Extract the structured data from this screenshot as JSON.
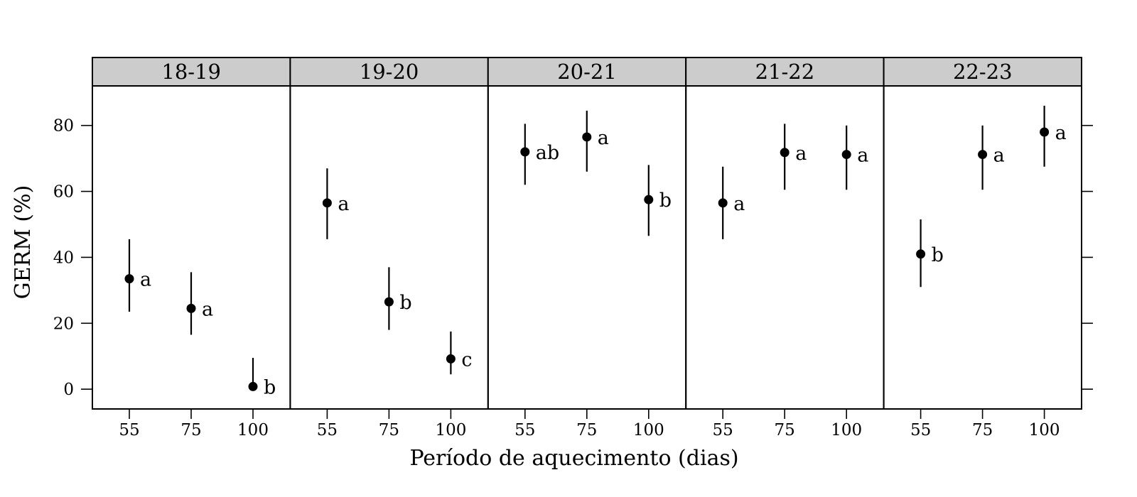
{
  "chart_data": {
    "type": "scatter",
    "subtype": "point-with-error-bars, faceted",
    "xlabel": "Período de aquecimento (dias)",
    "ylabel": "GERM (%)",
    "x_categories": [
      "55",
      "75",
      "100"
    ],
    "y_ticks": [
      0,
      20,
      40,
      60,
      80
    ],
    "ylim": [
      -6,
      92
    ],
    "grid": false,
    "panels": [
      {
        "strip": "18-19",
        "points": [
          {
            "x": "55",
            "y": 33.5,
            "lower": 23.5,
            "upper": 45.5,
            "group": "a"
          },
          {
            "x": "75",
            "y": 24.5,
            "lower": 16.5,
            "upper": 35.5,
            "group": "a"
          },
          {
            "x": "100",
            "y": 0.8,
            "lower": 0.0,
            "upper": 9.5,
            "group": "b"
          }
        ]
      },
      {
        "strip": "19-20",
        "points": [
          {
            "x": "55",
            "y": 56.5,
            "lower": 45.5,
            "upper": 67.0,
            "group": "a"
          },
          {
            "x": "75",
            "y": 26.5,
            "lower": 18.0,
            "upper": 37.0,
            "group": "b"
          },
          {
            "x": "100",
            "y": 9.2,
            "lower": 4.5,
            "upper": 17.5,
            "group": "c"
          }
        ]
      },
      {
        "strip": "20-21",
        "points": [
          {
            "x": "55",
            "y": 72.0,
            "lower": 62.0,
            "upper": 80.5,
            "group": "ab"
          },
          {
            "x": "75",
            "y": 76.5,
            "lower": 66.0,
            "upper": 84.5,
            "group": "a"
          },
          {
            "x": "100",
            "y": 57.5,
            "lower": 46.5,
            "upper": 68.0,
            "group": "b"
          }
        ]
      },
      {
        "strip": "21-22",
        "points": [
          {
            "x": "55",
            "y": 56.5,
            "lower": 45.5,
            "upper": 67.5,
            "group": "a"
          },
          {
            "x": "75",
            "y": 71.8,
            "lower": 60.5,
            "upper": 80.5,
            "group": "a"
          },
          {
            "x": "100",
            "y": 71.2,
            "lower": 60.5,
            "upper": 80.0,
            "group": "a"
          }
        ]
      },
      {
        "strip": "22-23",
        "points": [
          {
            "x": "55",
            "y": 41.0,
            "lower": 31.0,
            "upper": 51.5,
            "group": "b"
          },
          {
            "x": "75",
            "y": 71.2,
            "lower": 60.5,
            "upper": 80.0,
            "group": "a"
          },
          {
            "x": "100",
            "y": 78.0,
            "lower": 67.5,
            "upper": 86.0,
            "group": "a"
          }
        ]
      }
    ]
  }
}
